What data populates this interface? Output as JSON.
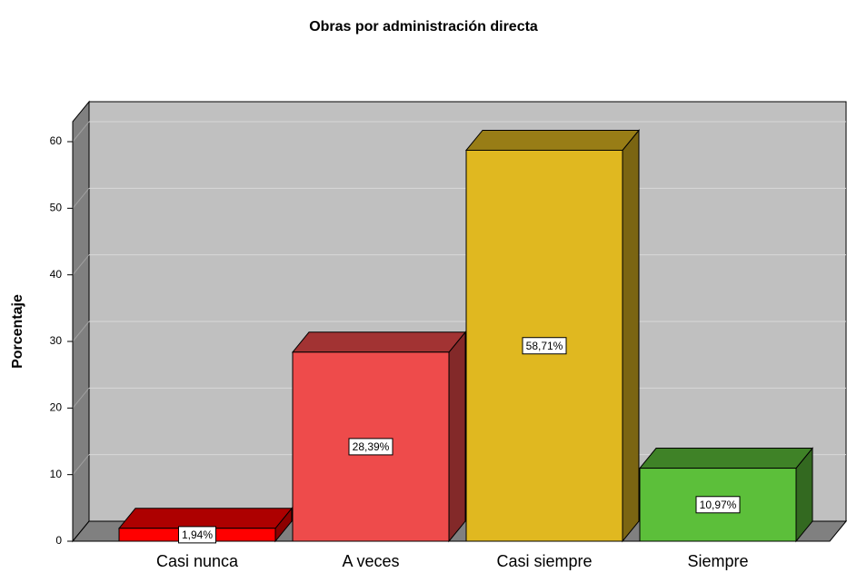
{
  "chart_data": {
    "type": "bar3d",
    "title": "Obras por administración directa",
    "y_label": "Porcentaje",
    "categories": [
      "Casi nunca",
      "A veces",
      "Casi siempre",
      "Siempre"
    ],
    "values": [
      1.94,
      28.39,
      58.71,
      10.97
    ],
    "value_labels": [
      "1,94%",
      "28,39%",
      "58,71%",
      "10,97%"
    ],
    "colors": [
      "#ff0000",
      "#ee4b4b",
      "#e0b820",
      "#5cbf3a"
    ],
    "ylim": [
      0,
      63
    ],
    "yticks": [
      0,
      10,
      20,
      30,
      40,
      50,
      60
    ],
    "grid": true
  }
}
